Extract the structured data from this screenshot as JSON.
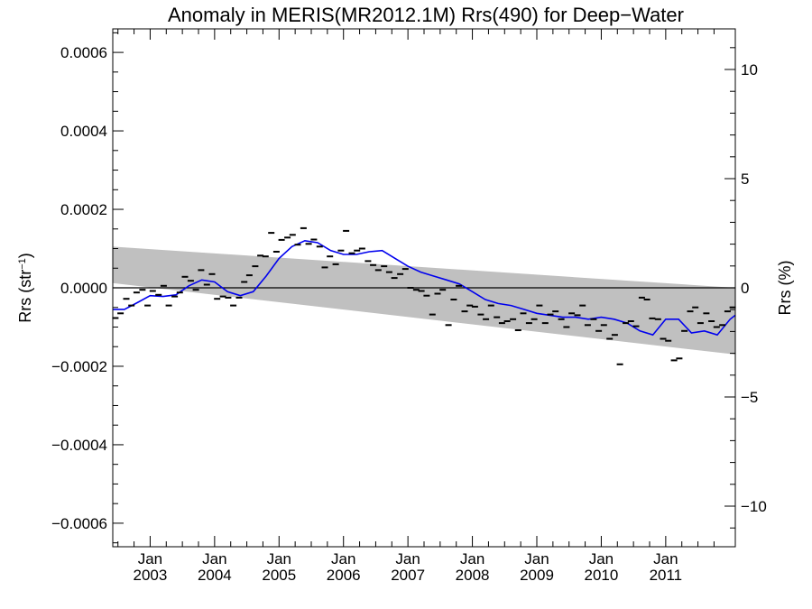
{
  "chart_data": {
    "type": "scatter",
    "title": "Anomaly in MERIS(MR2012.1M) Rrs(490) for Deep−Water",
    "ylabel_left": "Rrs (str",
    "ylabel_left_sup": "−1",
    "ylabel_left_close": ")",
    "ylabel_right": "Rrs (%)",
    "ylim_left": [
      -0.00066,
      0.00066
    ],
    "ylim_right": [
      -11.86,
      11.86
    ],
    "xlim": [
      2002.42,
      2012.08
    ],
    "left_ticks": [
      {
        "value": 0.0006,
        "label": "0.0006"
      },
      {
        "value": 0.0004,
        "label": "0.0004"
      },
      {
        "value": 0.0002,
        "label": "0.0002"
      },
      {
        "value": 0.0,
        "label": "0.0000"
      },
      {
        "value": -0.0002,
        "label": "−0.0002"
      },
      {
        "value": -0.0004,
        "label": "−0.0004"
      },
      {
        "value": -0.0006,
        "label": "−0.0006"
      }
    ],
    "right_ticks": [
      {
        "value": 10,
        "label": "10"
      },
      {
        "value": 5,
        "label": "5"
      },
      {
        "value": 0,
        "label": "0"
      },
      {
        "value": -5,
        "label": "−5"
      },
      {
        "value": -10,
        "label": "−10"
      }
    ],
    "x_ticks": [
      {
        "value": 2003.0,
        "month": "Jan",
        "year": "2003"
      },
      {
        "value": 2004.0,
        "month": "Jan",
        "year": "2004"
      },
      {
        "value": 2005.0,
        "month": "Jan",
        "year": "2005"
      },
      {
        "value": 2006.0,
        "month": "Jan",
        "year": "2006"
      },
      {
        "value": 2007.0,
        "month": "Jan",
        "year": "2007"
      },
      {
        "value": 2008.0,
        "month": "Jan",
        "year": "2008"
      },
      {
        "value": 2009.0,
        "month": "Jan",
        "year": "2009"
      },
      {
        "value": 2010.0,
        "month": "Jan",
        "year": "2010"
      },
      {
        "value": 2011.0,
        "month": "Jan",
        "year": "2011"
      }
    ],
    "band": {
      "x": [
        2002.42,
        2012.08
      ],
      "upper": [
        0.000105,
        0.0
      ],
      "lower": [
        1.2e-05,
        -0.00017
      ]
    },
    "zero_line": 0.0,
    "monthly_points": {
      "x": [
        2002.46,
        2002.54,
        2002.63,
        2002.71,
        2002.79,
        2002.88,
        2002.96,
        2003.04,
        2003.13,
        2003.21,
        2003.29,
        2003.38,
        2003.46,
        2003.54,
        2003.63,
        2003.71,
        2003.79,
        2003.88,
        2003.96,
        2004.04,
        2004.13,
        2004.21,
        2004.29,
        2004.38,
        2004.46,
        2004.54,
        2004.63,
        2004.71,
        2004.79,
        2004.88,
        2004.96,
        2005.04,
        2005.13,
        2005.21,
        2005.29,
        2005.38,
        2005.46,
        2005.54,
        2005.63,
        2005.71,
        2005.79,
        2005.88,
        2005.96,
        2006.04,
        2006.13,
        2006.21,
        2006.29,
        2006.38,
        2006.46,
        2006.54,
        2006.63,
        2006.71,
        2006.79,
        2006.88,
        2006.96,
        2007.04,
        2007.13,
        2007.21,
        2007.29,
        2007.38,
        2007.46,
        2007.54,
        2007.63,
        2007.71,
        2007.79,
        2007.88,
        2007.96,
        2008.04,
        2008.13,
        2008.21,
        2008.29,
        2008.38,
        2008.46,
        2008.54,
        2008.63,
        2008.71,
        2008.79,
        2008.88,
        2008.96,
        2009.04,
        2009.13,
        2009.21,
        2009.29,
        2009.38,
        2009.46,
        2009.54,
        2009.63,
        2009.71,
        2009.79,
        2009.88,
        2009.96,
        2010.04,
        2010.13,
        2010.21,
        2010.29,
        2010.38,
        2010.46,
        2010.54,
        2010.63,
        2010.71,
        2010.79,
        2010.88,
        2010.96,
        2011.04,
        2011.13,
        2011.21,
        2011.29,
        2011.38,
        2011.46,
        2011.54,
        2011.63,
        2011.71,
        2011.79,
        2011.88,
        2011.96,
        2012.04
      ],
      "y": [
        -7.7e-05,
        -6.5e-05,
        -2.8e-05,
        -4.5e-05,
        -1.2e-05,
        -5e-06,
        -4.5e-05,
        -8e-06,
        -1.8e-05,
        5e-06,
        -4.5e-05,
        -2.2e-05,
        -1.2e-05,
        2.8e-05,
        1.8e-05,
        -5e-06,
        4.5e-05,
        8e-06,
        3.5e-05,
        -2.8e-05,
        -2.2e-05,
        -2.5e-05,
        -4.5e-05,
        -2.5e-05,
        1.5e-05,
        3.2e-05,
        5.5e-05,
        8.2e-05,
        8e-05,
        0.00014,
        9.2e-05,
        0.000122,
        0.000128,
        0.000135,
        0.00011,
        0.000152,
        0.000112,
        0.000123,
        0.000105,
        5.2e-05,
        8e-05,
        6e-05,
        9.5e-05,
        0.000145,
        8.8e-05,
        9.5e-05,
        0.0001,
        6.8e-05,
        5.8e-05,
        4.5e-05,
        5.5e-05,
        4e-05,
        2.5e-05,
        3.5e-05,
        4.8e-05,
        0.0,
        -5e-06,
        -8e-06,
        -2e-05,
        -6.8e-05,
        -1.5e-05,
        -5e-06,
        -9.5e-05,
        -3e-05,
        5e-06,
        -6e-05,
        -4.5e-05,
        -4.8e-05,
        -6.8e-05,
        -8e-05,
        -4.5e-05,
        -7.5e-05,
        -9e-05,
        -8.5e-05,
        -8e-05,
        -0.000108,
        -6.5e-05,
        -9e-05,
        -8e-05,
        -4.5e-05,
        -9e-05,
        -6.8e-05,
        -6e-05,
        -8e-05,
        -0.0001,
        -6.5e-05,
        -7e-05,
        -4.5e-05,
        -9.5e-05,
        -8e-05,
        -0.00011,
        -9.5e-05,
        -0.00013,
        -0.00012,
        -0.000195,
        -9e-05,
        -8.5e-05,
        -9.8e-05,
        -2.5e-05,
        -3e-05,
        -7.8e-05,
        -8e-05,
        -0.00013,
        -0.000135,
        -0.000185,
        -0.00018,
        -0.00011,
        -6e-05,
        -5e-05,
        -9e-05,
        -6.5e-05,
        -8.5e-05,
        -0.0001,
        -9.5e-05,
        -6e-05,
        -5e-05
      ]
    },
    "smoothed_line": {
      "x": [
        2002.42,
        2002.6,
        2002.8,
        2003.0,
        2003.2,
        2003.4,
        2003.6,
        2003.8,
        2004.0,
        2004.2,
        2004.4,
        2004.6,
        2004.8,
        2005.0,
        2005.2,
        2005.4,
        2005.6,
        2005.8,
        2006.0,
        2006.2,
        2006.4,
        2006.6,
        2006.8,
        2007.0,
        2007.2,
        2007.4,
        2007.6,
        2007.8,
        2008.0,
        2008.2,
        2008.4,
        2008.6,
        2008.8,
        2009.0,
        2009.2,
        2009.4,
        2009.6,
        2009.8,
        2010.0,
        2010.2,
        2010.4,
        2010.6,
        2010.8,
        2011.0,
        2011.2,
        2011.4,
        2011.6,
        2011.8,
        2012.0,
        2012.08
      ],
      "y": [
        -5.5e-05,
        -5.5e-05,
        -3.8e-05,
        -2e-05,
        -2.2e-05,
        -1.8e-05,
        5e-06,
        2e-05,
        1.5e-05,
        -1e-05,
        -2e-05,
        -1e-05,
        3e-05,
        7.5e-05,
        0.000105,
        0.00012,
        0.000115,
        9.5e-05,
        8.5e-05,
        8.5e-05,
        9.2e-05,
        9.5e-05,
        7.5e-05,
        5.5e-05,
        4e-05,
        3e-05,
        2e-05,
        1e-05,
        -1e-05,
        -3e-05,
        -4e-05,
        -4.5e-05,
        -5.5e-05,
        -6.5e-05,
        -7e-05,
        -7.5e-05,
        -7.5e-05,
        -8e-05,
        -7.5e-05,
        -8e-05,
        -9e-05,
        -0.00011,
        -0.00012,
        -8e-05,
        -8e-05,
        -0.000115,
        -0.00011,
        -0.00012,
        -8e-05,
        -7e-05
      ]
    },
    "colors": {
      "band": "#c0c0c0",
      "line": "#0000ee",
      "points": "#000000",
      "zero_line": "#000000",
      "axes": "#000000"
    }
  }
}
